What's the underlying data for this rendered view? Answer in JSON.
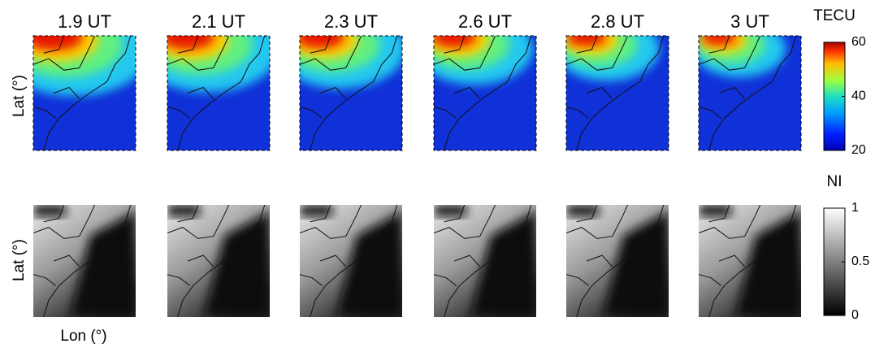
{
  "panels": {
    "titles": [
      "1.9 UT",
      "2.1 UT",
      "2.3 UT",
      "2.6 UT",
      "2.8 UT",
      "3 UT"
    ]
  },
  "y_label_top": "Lat (°)",
  "y_label_bottom": "Lat (°)",
  "x_label": "Lon (°)",
  "tec_colorbar": {
    "label": "TECU",
    "range": [
      20,
      60
    ],
    "ticks": [
      20,
      40,
      60
    ]
  },
  "ni_colorbar": {
    "label": "NI",
    "range": [
      0,
      1
    ],
    "ticks": [
      0,
      0.5,
      1
    ]
  }
}
